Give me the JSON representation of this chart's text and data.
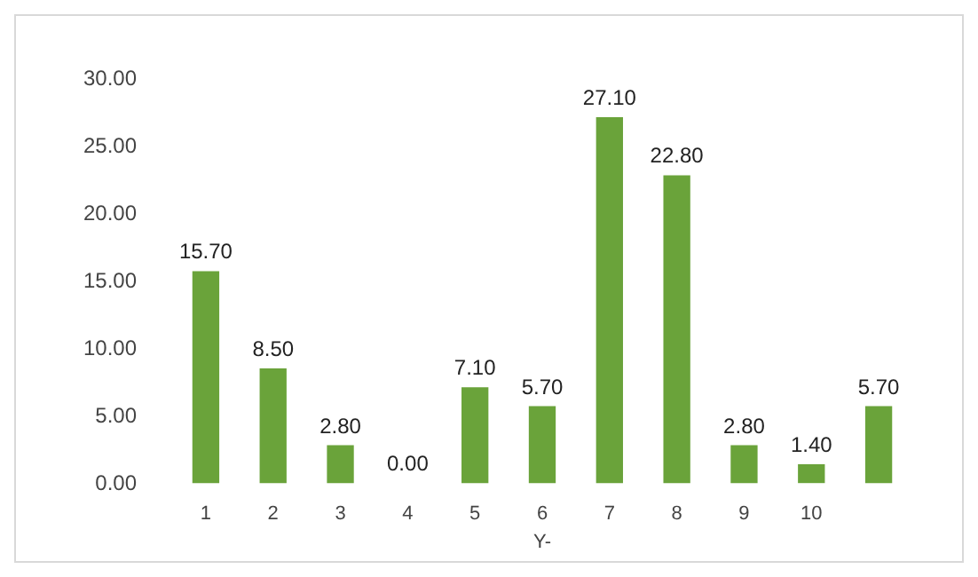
{
  "chart_data": {
    "type": "bar",
    "xlabel": "Y-",
    "categories": [
      "1",
      "2",
      "3",
      "4",
      "5",
      "6",
      "7",
      "8",
      "9",
      "10",
      null
    ],
    "values": [
      15.7,
      8.5,
      2.8,
      0.0,
      7.1,
      5.7,
      27.1,
      22.8,
      2.8,
      1.4,
      5.7
    ],
    "value_labels": [
      "15.70",
      "8.50",
      "2.80",
      "0.00",
      "7.10",
      "5.70",
      "27.10",
      "22.80",
      "2.80",
      "1.40",
      "5.70"
    ],
    "color": "#6aa33a",
    "ylim": [
      0,
      30
    ],
    "yticks": [
      {
        "value": 0,
        "label": "0.00"
      },
      {
        "value": 5,
        "label": "5.00"
      },
      {
        "value": 10,
        "label": "10.00"
      },
      {
        "value": 15,
        "label": "15.00"
      },
      {
        "value": 20,
        "label": "20.00"
      },
      {
        "value": 25,
        "label": "25.00"
      },
      {
        "value": 30,
        "label": "30.00"
      }
    ],
    "grid": false
  }
}
